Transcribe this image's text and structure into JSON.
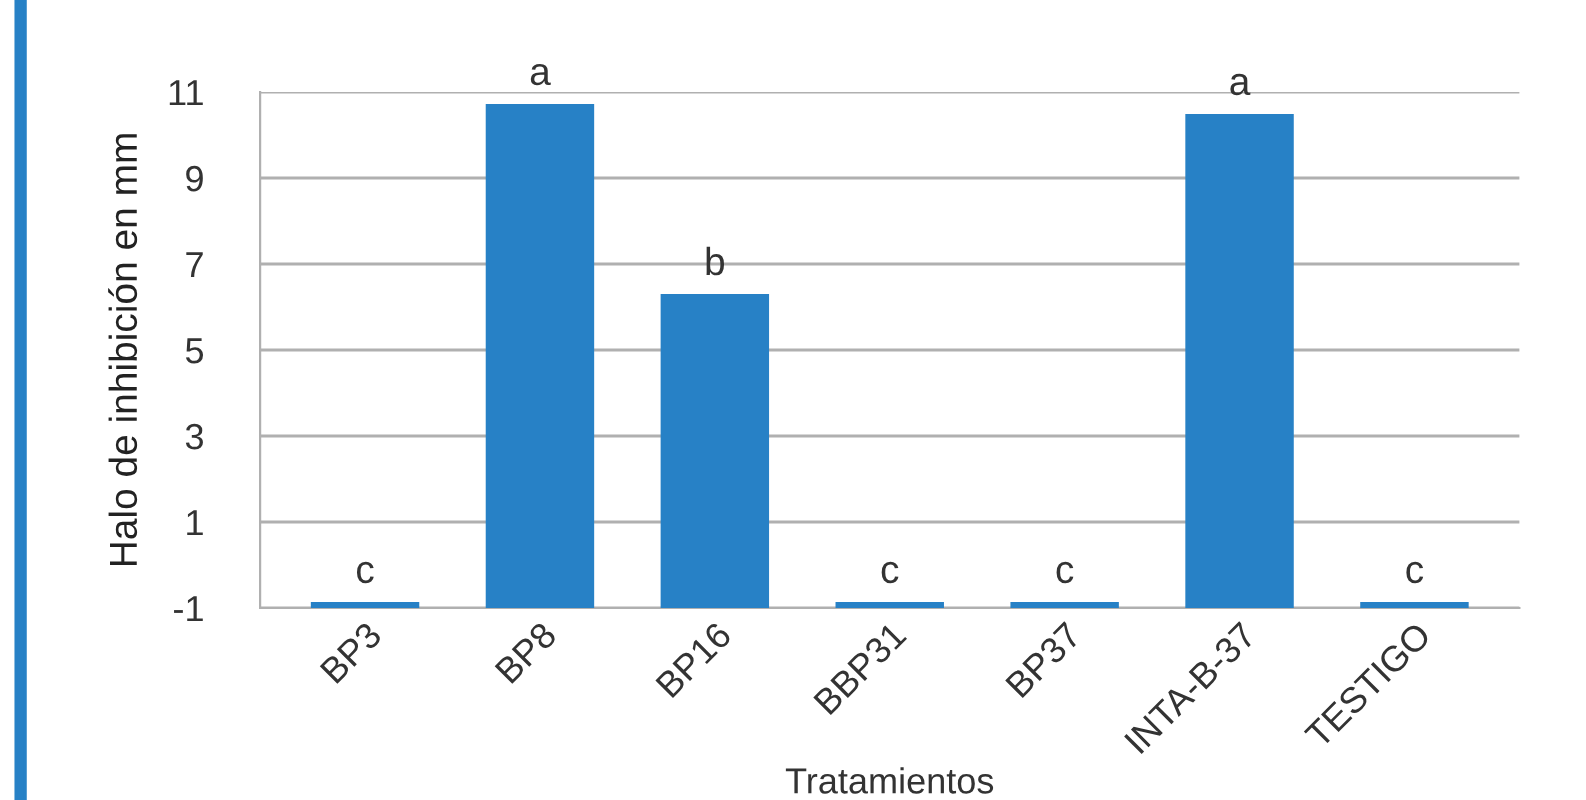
{
  "chart_data": {
    "type": "bar",
    "xlabel": "Tratamientos",
    "ylabel": "Halo de inhibición en mm",
    "categories": [
      "BP3",
      "BP8",
      "BP16",
      "BBP31",
      "BP37",
      "INTA-B-37",
      "TESTIGO"
    ],
    "base": [
      -1,
      -1,
      -1,
      -1,
      -1,
      -1,
      -1
    ],
    "values": [
      0.14,
      11.72,
      7.3,
      0.14,
      0.14,
      11.49,
      0.14
    ],
    "color": "#2781c6",
    "ylim": [
      -1,
      11
    ],
    "yticks": [
      -1,
      1,
      3,
      5,
      7,
      9,
      11
    ],
    "grid": "y",
    "annotations": [
      {
        "text": "c",
        "x": "BP3",
        "y": -0.86
      },
      {
        "text": "a",
        "x": "BP8",
        "y": 10.72
      },
      {
        "text": "b",
        "x": "BP16",
        "y": 6.3
      },
      {
        "text": "c",
        "x": "BBP31",
        "y": -0.86
      },
      {
        "text": "c",
        "x": "BP37",
        "y": -0.86
      },
      {
        "text": "a",
        "x": "INTA-B-37",
        "y": 10.49
      },
      {
        "text": "c",
        "x": "TESTIGO",
        "y": -0.86
      }
    ]
  }
}
